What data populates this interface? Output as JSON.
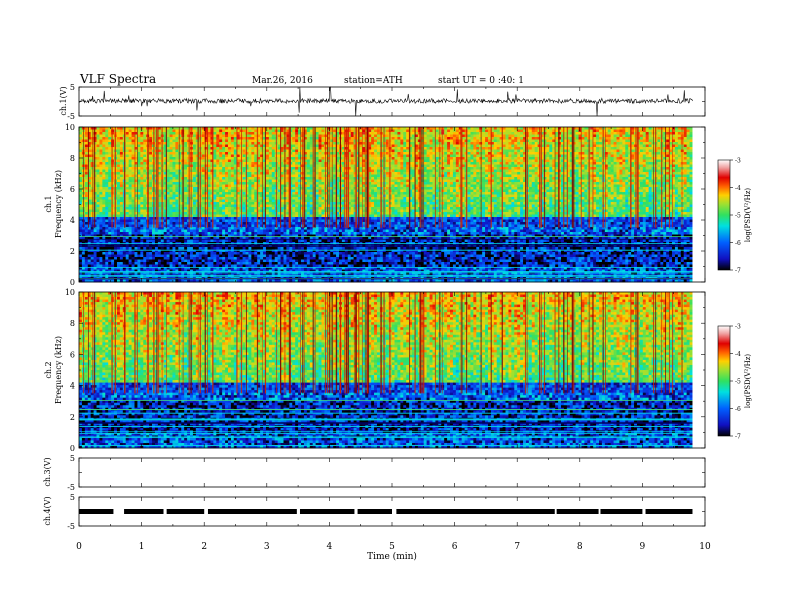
{
  "header": {
    "title": "VLF  Spectra",
    "date": "Mar.26, 2016",
    "station": "station=ATH",
    "start": "start  UT =   0 :40: 1"
  },
  "chart_data": {
    "type": "heatmap",
    "xlabel": "Time  (min)",
    "xlim": [
      0,
      10
    ],
    "xticks": [
      "0",
      "1",
      "2",
      "3",
      "4",
      "5",
      "6",
      "7",
      "8",
      "9",
      "10"
    ],
    "panels": [
      {
        "name": "ch1-waveform",
        "type": "line",
        "ylabel": "ch.1(V)",
        "ylim": [
          -5,
          5
        ],
        "yticks": [
          "5",
          "-5"
        ]
      },
      {
        "name": "ch1-spectrogram",
        "type": "heatmap",
        "ylabel_top": "ch.1",
        "ylabel": "Frequency  (kHz)",
        "ylim": [
          0,
          10
        ],
        "yticks": [
          "0",
          "2",
          "4",
          "6",
          "8",
          "10"
        ],
        "data_extent_min": 9.8
      },
      {
        "name": "ch2-spectrogram",
        "type": "heatmap",
        "ylabel_top": "ch.2",
        "ylabel": "Frequency  (kHz)",
        "ylim": [
          0,
          10
        ],
        "yticks": [
          "0",
          "2",
          "4",
          "6",
          "8",
          "10"
        ],
        "data_extent_min": 9.8
      },
      {
        "name": "ch3-waveform",
        "type": "line",
        "ylabel": "ch.3(V)",
        "ylim": [
          -5,
          5
        ],
        "yticks": [
          "5",
          "-5"
        ]
      },
      {
        "name": "ch4-waveform",
        "type": "line",
        "ylabel": "ch.4(V)",
        "ylim": [
          -5,
          5
        ],
        "yticks": [
          "5",
          "-5"
        ]
      }
    ],
    "colorbar": {
      "label": "log(PSD(V²/Hz)",
      "range": [
        -7,
        -3
      ],
      "ticks": [
        "-3",
        "-4",
        "-5",
        "-6",
        "-7"
      ]
    },
    "spectral_structure": {
      "low_band_khz": [
        0,
        3.5
      ],
      "low_band_level": -6.5,
      "noise_band_khz": [
        3.5,
        10
      ],
      "noise_band_level": -4.6,
      "sferics_count_approx": 120
    }
  },
  "colors": {
    "waveform": "#000000",
    "frame": "#000000",
    "colormap": [
      "#000000",
      "#1010c0",
      "#0060ff",
      "#00e0e0",
      "#30e060",
      "#a0e030",
      "#ffd000",
      "#ff6000",
      "#e00000",
      "#f0a0a0",
      "#ffffff"
    ]
  }
}
